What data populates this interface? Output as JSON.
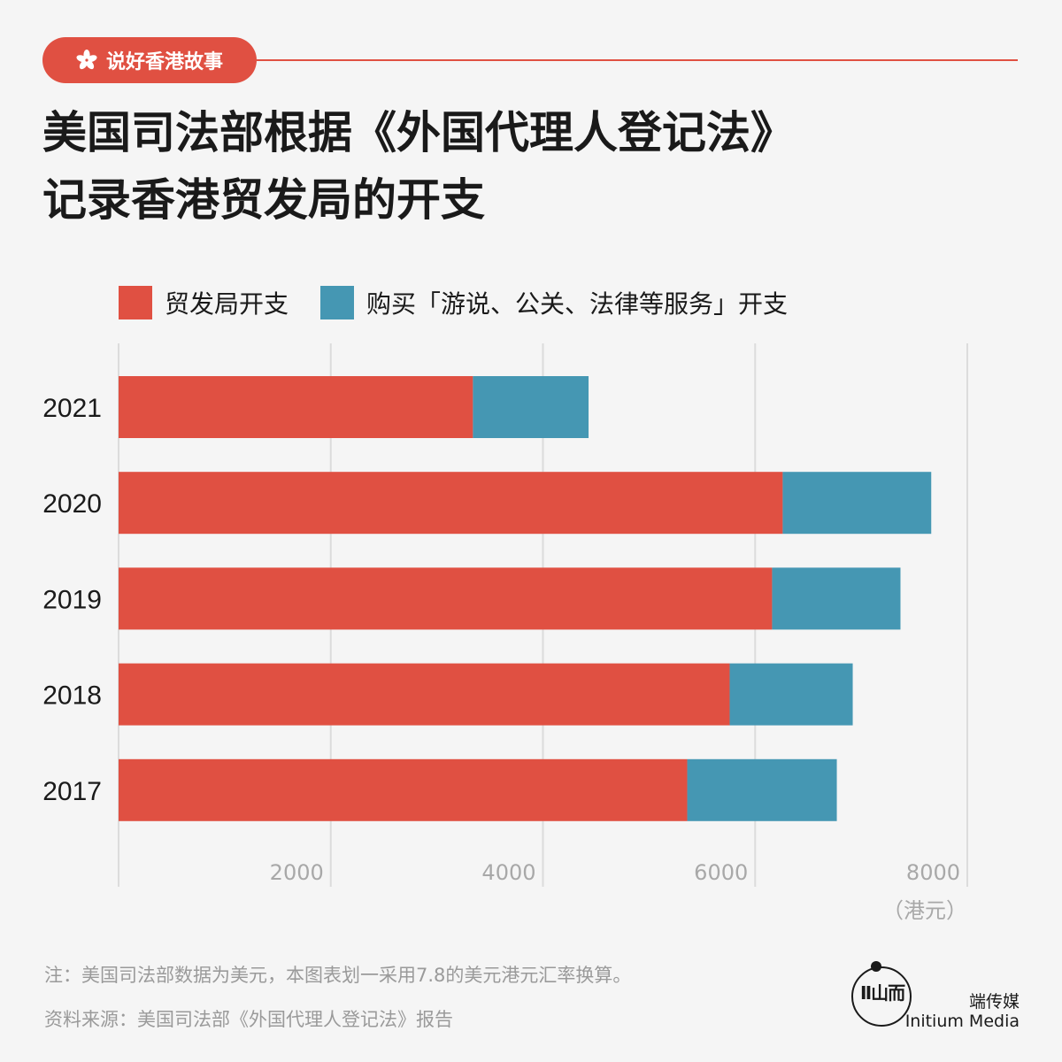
{
  "tag": {
    "label": "说好香港故事",
    "icon": "bauhinia-icon"
  },
  "title": {
    "line1": "美国司法部根据《外国代理人登记法》",
    "line2": "记录香港贸发局的开支"
  },
  "colors": {
    "accent": "#e05042",
    "series1": "#e05042",
    "series2": "#4597b3"
  },
  "chart_data": {
    "type": "bar",
    "orientation": "horizontal",
    "stacked": true,
    "categories": [
      "2021",
      "2020",
      "2019",
      "2018",
      "2017"
    ],
    "series": [
      {
        "name": "贸发局开支",
        "color": "#e05042",
        "values": [
          3340,
          6260,
          6160,
          5760,
          5360
        ]
      },
      {
        "name": "购买「游说、公关、法律等服务」开支",
        "color": "#4597b3",
        "values": [
          1090,
          1400,
          1210,
          1160,
          1410
        ]
      }
    ],
    "xlim": [
      0,
      8000
    ],
    "xticks": [
      2000,
      4000,
      6000,
      8000
    ],
    "xunit": "（港元）",
    "grid": true,
    "legend": "top-left"
  },
  "notes": {
    "note": "注：美国司法部数据为美元，本图表划一采用7.8的美元港元汇率换算。",
    "source": "资料来源：美国司法部《外国代理人登记法》报告"
  },
  "brand": {
    "cn": "端传媒",
    "en": "Initium Media",
    "logo_glyph": "Ⅱ山而"
  }
}
